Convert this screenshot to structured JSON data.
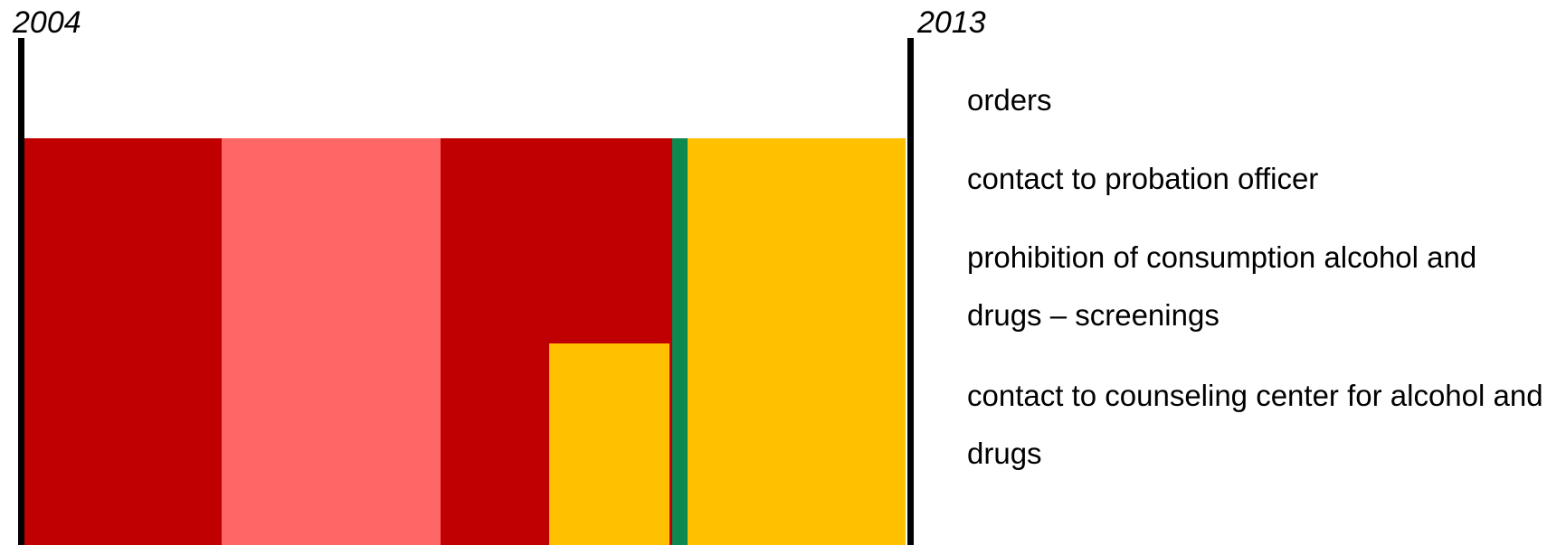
{
  "timeline": {
    "start_year": "2004",
    "end_year": "2013"
  },
  "colors": {
    "dark_red": "#C00000",
    "light_red": "#FF6666",
    "yellow": "#FFC000",
    "green": "#0C8A50",
    "axis": "#000000"
  },
  "legend": {
    "items": [
      "orders",
      "contact to probation officer",
      "prohibition of consumption alcohol and drugs – screenings",
      "contact to counseling center for alcohol and drugs"
    ]
  }
}
